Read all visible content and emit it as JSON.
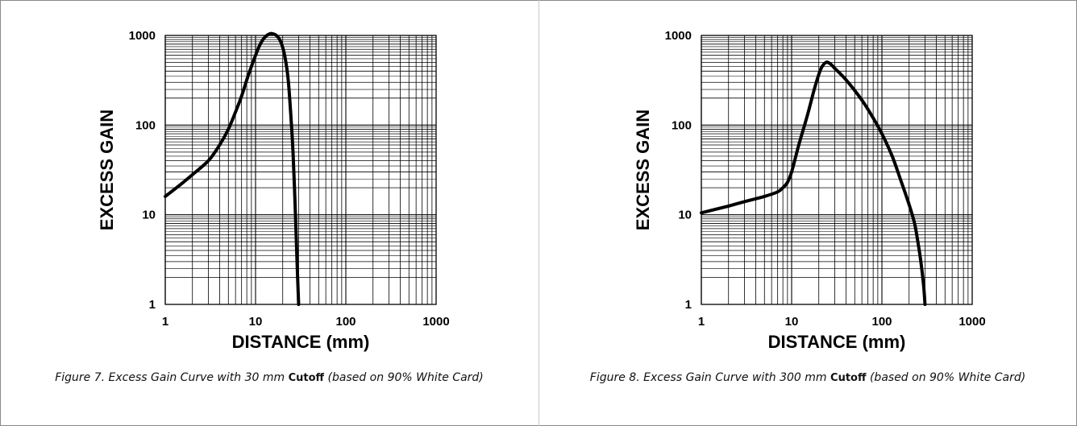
{
  "chart_data": [
    {
      "type": "line",
      "xlabel": "DISTANCE (mm)",
      "ylabel": "EXCESS GAIN",
      "xscale": "log",
      "yscale": "log",
      "xlim": [
        1,
        1000
      ],
      "ylim": [
        1,
        1000
      ],
      "xticks": [
        "1",
        "10",
        "100",
        "1000"
      ],
      "yticks": [
        "1",
        "10",
        "100",
        "1000"
      ],
      "grid": true,
      "caption": {
        "prefix": "Figure 7. Excess Gain Curve with 30 mm ",
        "emph": "Cutoff",
        "suffix": " (based on 90% White Card)"
      },
      "series": [
        {
          "x": [
            1,
            1.5,
            2,
            3,
            4,
            5,
            6,
            7,
            8,
            9,
            10,
            11,
            12,
            13,
            14,
            15,
            17,
            19,
            21,
            23,
            25,
            26,
            27,
            28,
            29,
            30
          ],
          "y": [
            16,
            22,
            28,
            40,
            60,
            90,
            140,
            210,
            320,
            450,
            600,
            760,
            890,
            980,
            1030,
            1050,
            1000,
            850,
            600,
            320,
            100,
            50,
            20,
            7,
            2.5,
            1
          ]
        }
      ]
    },
    {
      "type": "line",
      "xlabel": "DISTANCE (mm)",
      "ylabel": "EXCESS GAIN",
      "xscale": "log",
      "yscale": "log",
      "xlim": [
        1,
        1000
      ],
      "ylim": [
        1,
        1000
      ],
      "xticks": [
        "1",
        "10",
        "100",
        "1000"
      ],
      "yticks": [
        "1",
        "10",
        "100",
        "1000"
      ],
      "grid": true,
      "caption": {
        "prefix": "Figure 8. Excess Gain Curve with 300 mm ",
        "emph": "Cutoff",
        "suffix": " (based on 90% White Card)"
      },
      "series": [
        {
          "x": [
            1,
            2,
            3,
            5,
            7,
            8,
            9,
            10,
            12,
            15,
            18,
            21,
            24,
            27,
            30,
            40,
            60,
            80,
            100,
            130,
            160,
            200,
            230,
            250,
            270,
            290,
            300
          ],
          "y": [
            10.5,
            12.5,
            14,
            16,
            18,
            20,
            23,
            30,
            60,
            130,
            260,
            420,
            500,
            480,
            430,
            320,
            190,
            120,
            80,
            45,
            25,
            13,
            8,
            5,
            3,
            1.6,
            1
          ]
        }
      ]
    }
  ]
}
